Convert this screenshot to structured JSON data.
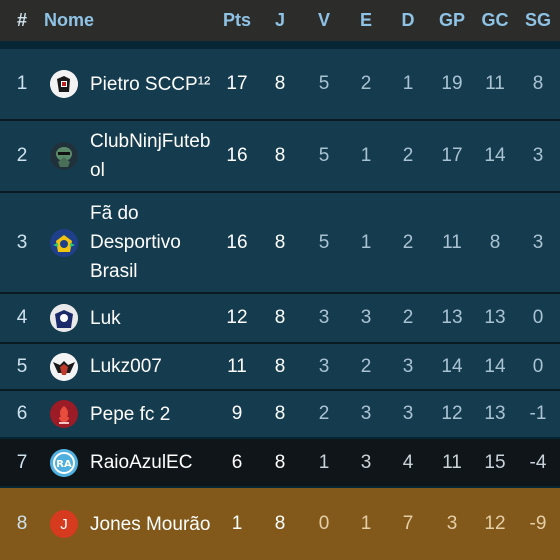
{
  "headers": {
    "pos": "#",
    "name": "Nome",
    "pts": "Pts",
    "j": "J",
    "v": "V",
    "e": "E",
    "d": "D",
    "gp": "GP",
    "gc": "GC",
    "sg": "SG"
  },
  "rows": [
    {
      "pos": "1",
      "name": "Pietro SCCP¹²",
      "pts": "17",
      "j": "8",
      "v": "5",
      "e": "2",
      "d": "1",
      "gp": "19",
      "gc": "11",
      "sg": "8",
      "badge": "pietro-badge-icon"
    },
    {
      "pos": "2",
      "name": "ClubNinjFutebol",
      "pts": "16",
      "j": "8",
      "v": "5",
      "e": "1",
      "d": "2",
      "gp": "17",
      "gc": "14",
      "sg": "3",
      "badge": "ninja-badge-icon"
    },
    {
      "pos": "3",
      "name": "Fã do Desportivo Brasil",
      "pts": "16",
      "j": "8",
      "v": "5",
      "e": "1",
      "d": "2",
      "gp": "11",
      "gc": "8",
      "sg": "3",
      "badge": "desportivo-badge-icon"
    },
    {
      "pos": "4",
      "name": "Luk",
      "pts": "12",
      "j": "8",
      "v": "3",
      "e": "3",
      "d": "2",
      "gp": "13",
      "gc": "13",
      "sg": "0",
      "badge": "luk-badge-icon"
    },
    {
      "pos": "5",
      "name": "Lukz007",
      "pts": "11",
      "j": "8",
      "v": "3",
      "e": "2",
      "d": "3",
      "gp": "14",
      "gc": "14",
      "sg": "0",
      "badge": "lukz-badge-icon"
    },
    {
      "pos": "6",
      "name": "Pepe fc 2",
      "pts": "9",
      "j": "8",
      "v": "2",
      "e": "3",
      "d": "3",
      "gp": "12",
      "gc": "13",
      "sg": "-1",
      "badge": "pepe-badge-icon"
    },
    {
      "pos": "7",
      "name": "RaioAzulEC",
      "pts": "6",
      "j": "8",
      "v": "1",
      "e": "3",
      "d": "4",
      "gp": "11",
      "gc": "15",
      "sg": "-4",
      "badge": "raio-azul-badge-icon"
    },
    {
      "pos": "8",
      "name": "Jones Mourão",
      "pts": "1",
      "j": "8",
      "v": "0",
      "e": "1",
      "d": "7",
      "gp": "3",
      "gc": "12",
      "sg": "-9",
      "badge": "jones-badge-icon",
      "badge_letter": "J"
    }
  ],
  "colors": {
    "header_bg": "#2c2c2a",
    "header_text": "#8ec3e6",
    "row_teal": "#153b4f",
    "row_dark": "#0f1519",
    "row_gold": "#82591a"
  }
}
